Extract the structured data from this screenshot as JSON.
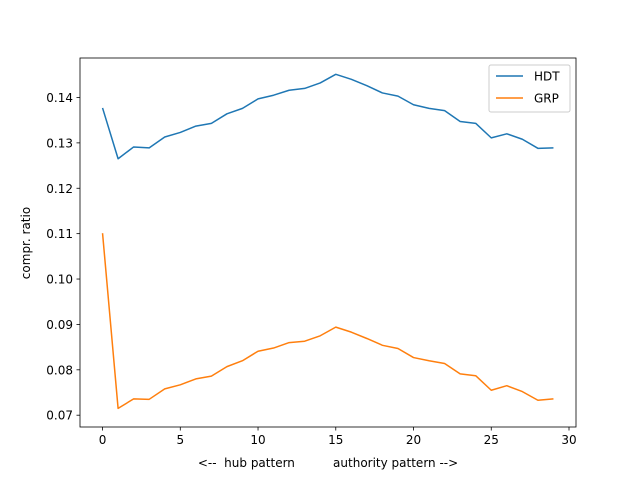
{
  "chart_data": {
    "type": "line",
    "title": "",
    "xlabel": "<--  hub pattern          authority pattern -->",
    "ylabel": "compr. ratio",
    "xlim": [
      -1.45,
      30.45
    ],
    "ylim": [
      0.0674,
      0.1487
    ],
    "xticks": [
      0,
      5,
      10,
      15,
      20,
      25,
      30
    ],
    "yticks": [
      0.07,
      0.08,
      0.09,
      0.1,
      0.11,
      0.12,
      0.13,
      0.14
    ],
    "xtick_labels": [
      "0",
      "5",
      "10",
      "15",
      "20",
      "25",
      "30"
    ],
    "ytick_labels": [
      "0.07",
      "0.08",
      "0.09",
      "0.10",
      "0.11",
      "0.12",
      "0.13",
      "0.14"
    ],
    "legend_position": "top-right",
    "grid": false,
    "x": [
      0,
      1,
      2,
      3,
      4,
      5,
      6,
      7,
      8,
      9,
      10,
      11,
      12,
      13,
      14,
      15,
      16,
      17,
      18,
      19,
      20,
      21,
      22,
      23,
      24,
      25,
      26,
      27,
      28,
      29
    ],
    "series": [
      {
        "name": "HDT",
        "color": "#1f77b4",
        "values": [
          0.1377,
          0.1265,
          0.1291,
          0.1289,
          0.1313,
          0.1323,
          0.1337,
          0.1343,
          0.1364,
          0.1376,
          0.1397,
          0.1405,
          0.1416,
          0.142,
          0.1432,
          0.1451,
          0.144,
          0.1426,
          0.141,
          0.1403,
          0.1384,
          0.1376,
          0.1371,
          0.1347,
          0.1343,
          0.1311,
          0.132,
          0.1308,
          0.1288,
          0.1289
        ]
      },
      {
        "name": "GRP",
        "color": "#ff7f0e",
        "values": [
          0.1101,
          0.0715,
          0.0736,
          0.0735,
          0.0758,
          0.0767,
          0.078,
          0.0786,
          0.0807,
          0.082,
          0.0841,
          0.0848,
          0.086,
          0.0863,
          0.0875,
          0.0894,
          0.0883,
          0.0869,
          0.0854,
          0.0847,
          0.0827,
          0.082,
          0.0814,
          0.0791,
          0.0787,
          0.0755,
          0.0765,
          0.0752,
          0.0733,
          0.0736
        ]
      }
    ]
  }
}
